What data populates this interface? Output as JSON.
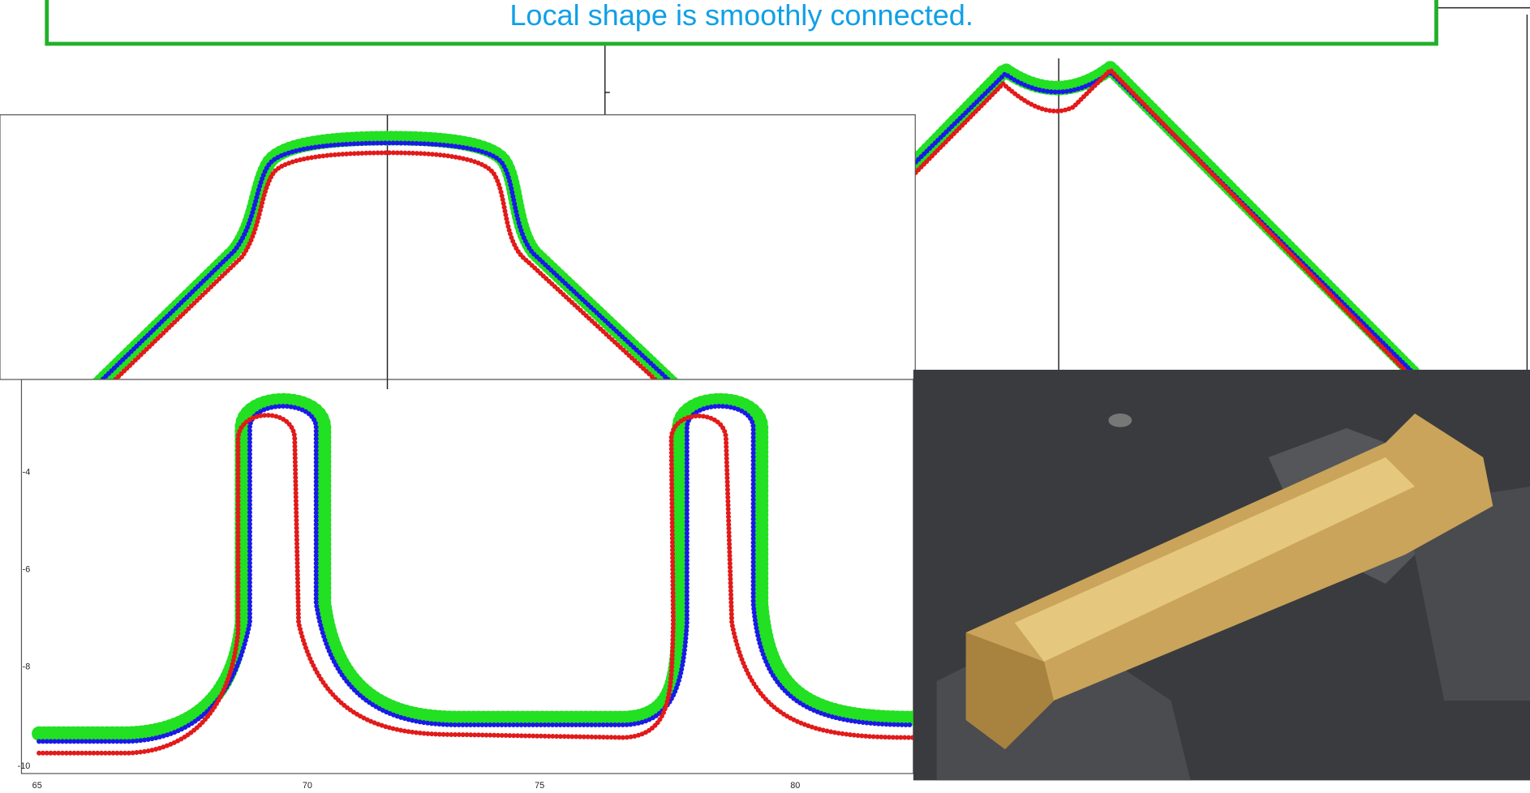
{
  "title": "Local shape is smoothly connected.",
  "bottom_plot": {
    "yticks": [
      -4,
      -6,
      -8,
      -10
    ],
    "xticks": [
      65,
      70,
      75,
      80
    ]
  }
}
